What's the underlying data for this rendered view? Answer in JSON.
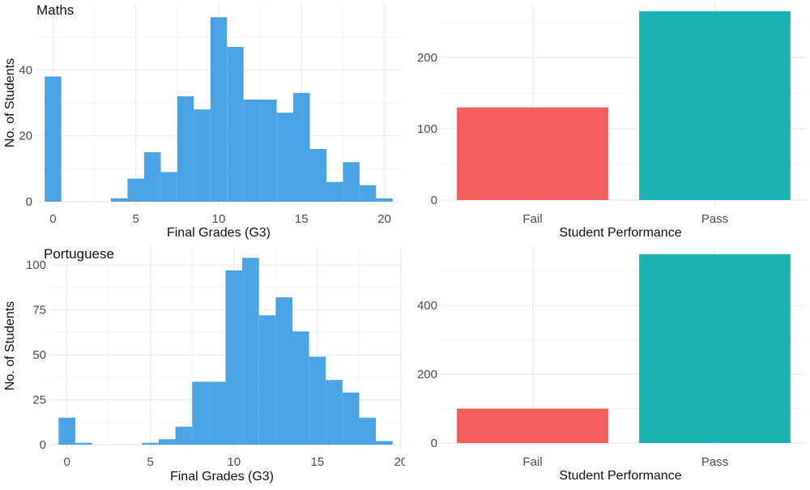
{
  "colors": {
    "hist": "#4aa3e3",
    "fail": "#f45f5b",
    "pass": "#19b3b5",
    "grid": "#ebebeb",
    "text": "#4d4d4d",
    "title": "#111111"
  },
  "chart_data": [
    {
      "id": "maths-hist",
      "type": "bar",
      "title": "Maths",
      "xlabel": "Final Grades (G3)",
      "ylabel": "No. of Students",
      "bin_width": 1,
      "x": [
        0,
        1,
        2,
        3,
        4,
        5,
        6,
        7,
        8,
        9,
        10,
        11,
        12,
        13,
        14,
        15,
        16,
        17,
        18,
        19,
        20
      ],
      "values": [
        38,
        0,
        0,
        0,
        1,
        7,
        15,
        9,
        32,
        28,
        56,
        47,
        31,
        31,
        27,
        33,
        16,
        6,
        12,
        5,
        1
      ],
      "xlim": [
        -1,
        21
      ],
      "ylim": [
        0,
        60
      ],
      "xticks": [
        "0",
        "5",
        "10",
        "15",
        "20"
      ],
      "yticks": [
        "0",
        "20",
        "40"
      ]
    },
    {
      "id": "maths-perf",
      "type": "bar",
      "title": "",
      "xlabel": "Student Performance",
      "ylabel": "",
      "categories": [
        "Fail",
        "Pass"
      ],
      "values": [
        130,
        265
      ],
      "ylim": [
        0,
        275
      ],
      "yticks": [
        "0",
        "100",
        "200"
      ]
    },
    {
      "id": "port-hist",
      "type": "bar",
      "title": "Portuguese",
      "xlabel": "Final Grades (G3)",
      "ylabel": "No. of Students",
      "bin_width": 1,
      "x": [
        0,
        1,
        2,
        3,
        4,
        5,
        6,
        7,
        8,
        9,
        10,
        11,
        12,
        13,
        14,
        15,
        16,
        17,
        18,
        19
      ],
      "values": [
        15,
        1,
        0,
        0,
        0,
        1,
        3,
        10,
        35,
        35,
        97,
        104,
        72,
        82,
        63,
        49,
        36,
        29,
        15,
        2
      ],
      "xlim": [
        -1,
        20
      ],
      "ylim": [
        0,
        110
      ],
      "xticks": [
        "0",
        "5",
        "10",
        "15",
        "20"
      ],
      "yticks": [
        "0",
        "25",
        "50",
        "75",
        "100"
      ]
    },
    {
      "id": "port-perf",
      "type": "bar",
      "title": "",
      "xlabel": "Student Performance",
      "ylabel": "",
      "categories": [
        "Fail",
        "Pass"
      ],
      "values": [
        100,
        549
      ],
      "ylim": [
        0,
        570
      ],
      "yticks": [
        "0",
        "200",
        "400"
      ]
    }
  ]
}
